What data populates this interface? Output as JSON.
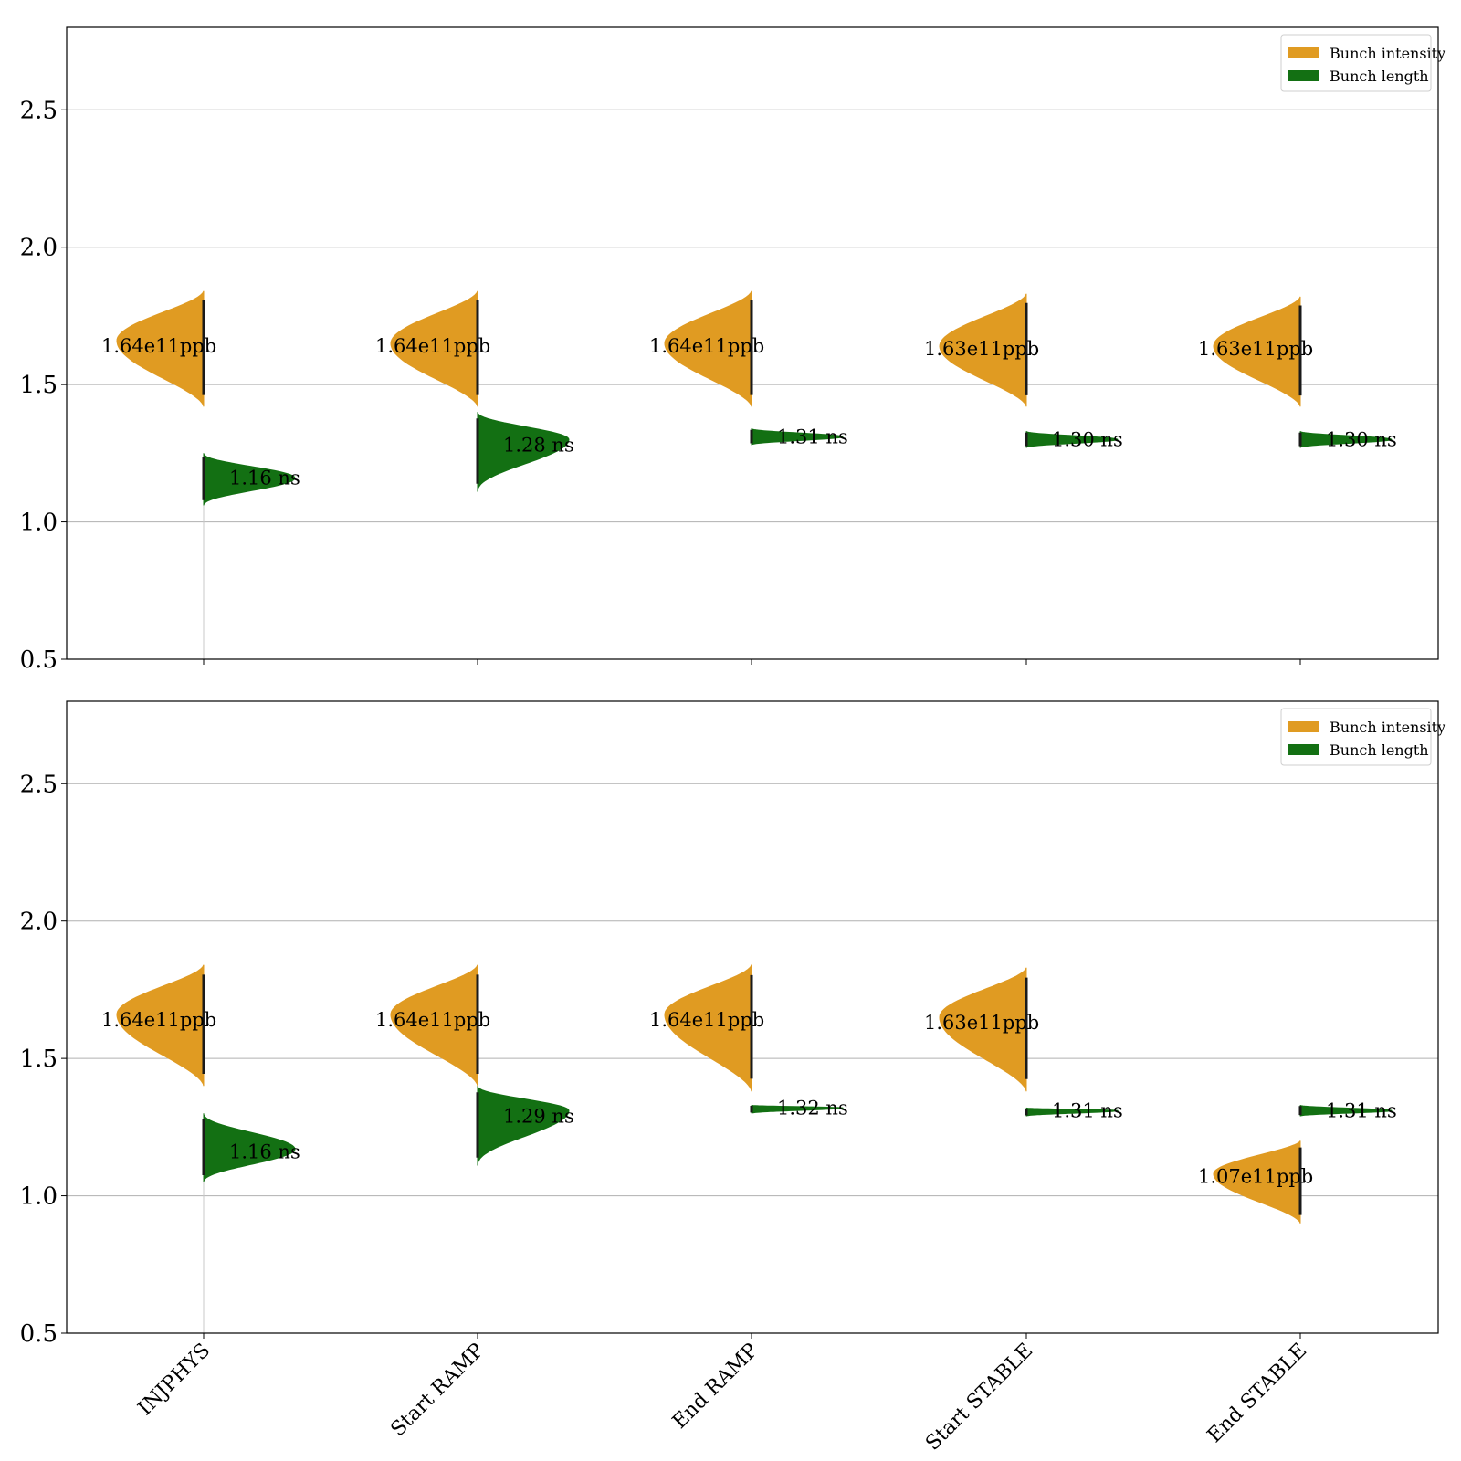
{
  "chart_data": [
    {
      "type": "violin",
      "title": "",
      "xlabel": "",
      "ylabel": "",
      "ylim": [
        0.5,
        2.8
      ],
      "yticks": [
        0.5,
        1.0,
        1.5,
        2.0,
        2.5
      ],
      "ytick_labels": [
        "0.5",
        "1.0",
        "1.5",
        "2.0",
        "2.5"
      ],
      "grid": "y",
      "legend_position": "top-right",
      "categories": [
        "INJPHYS",
        "Start RAMP",
        "End RAMP",
        "Start STABLE",
        "End STABLE"
      ],
      "series": [
        {
          "name": "Bunch intensity",
          "color": "#e09b22",
          "side": "left",
          "medians": [
            1.64,
            1.64,
            1.64,
            1.63,
            1.63
          ],
          "ranges": [
            [
              1.42,
              1.84
            ],
            [
              1.42,
              1.84
            ],
            [
              1.42,
              1.84
            ],
            [
              1.42,
              1.83
            ],
            [
              1.42,
              1.82
            ]
          ],
          "peaks": [
            1.66,
            1.65,
            1.65,
            1.64,
            1.64
          ],
          "labels": [
            "1.64e11ppb",
            "1.64e11ppb",
            "1.64e11ppb",
            "1.63e11ppb",
            "1.63e11ppb"
          ]
        },
        {
          "name": "Bunch length",
          "color": "#137013",
          "side": "right",
          "medians": [
            1.16,
            1.28,
            1.31,
            1.3,
            1.3
          ],
          "ranges": [
            [
              1.06,
              1.25
            ],
            [
              1.11,
              1.4
            ],
            [
              1.28,
              1.34
            ],
            [
              1.27,
              1.33
            ],
            [
              1.27,
              1.33
            ]
          ],
          "peaks": [
            1.16,
            1.3,
            1.31,
            1.3,
            1.3
          ],
          "labels": [
            "1.16 ns",
            "1.28 ns",
            "1.31 ns",
            "1.30 ns",
            "1.30 ns"
          ]
        }
      ]
    },
    {
      "type": "violin",
      "title": "",
      "xlabel": "",
      "ylabel": "",
      "ylim": [
        0.5,
        2.8
      ],
      "yticks": [
        0.5,
        1.0,
        1.5,
        2.0,
        2.5
      ],
      "ytick_labels": [
        "0.5",
        "1.0",
        "1.5",
        "2.0",
        "2.5"
      ],
      "grid": "y",
      "legend_position": "top-right",
      "categories": [
        "INJPHYS",
        "Start RAMP",
        "End RAMP",
        "Start STABLE",
        "End STABLE"
      ],
      "series": [
        {
          "name": "Bunch intensity",
          "color": "#e09b22",
          "side": "left",
          "medians": [
            1.64,
            1.64,
            1.64,
            1.63,
            1.07
          ],
          "ranges": [
            [
              1.4,
              1.84
            ],
            [
              1.4,
              1.84
            ],
            [
              1.38,
              1.84
            ],
            [
              1.38,
              1.83
            ],
            [
              0.9,
              1.2
            ]
          ],
          "peaks": [
            1.66,
            1.66,
            1.66,
            1.65,
            1.08
          ],
          "labels": [
            "1.64e11ppb",
            "1.64e11ppb",
            "1.64e11ppb",
            "1.63e11ppb",
            "1.07e11ppb"
          ]
        },
        {
          "name": "Bunch length",
          "color": "#137013",
          "side": "right",
          "medians": [
            1.16,
            1.29,
            1.32,
            1.31,
            1.31
          ],
          "ranges": [
            [
              1.05,
              1.3
            ],
            [
              1.11,
              1.4
            ],
            [
              1.3,
              1.33
            ],
            [
              1.29,
              1.32
            ],
            [
              1.29,
              1.33
            ]
          ],
          "peaks": [
            1.17,
            1.31,
            1.32,
            1.31,
            1.31
          ],
          "labels": [
            "1.16 ns",
            "1.29 ns",
            "1.32 ns",
            "1.31 ns",
            "1.31 ns"
          ]
        }
      ]
    }
  ]
}
